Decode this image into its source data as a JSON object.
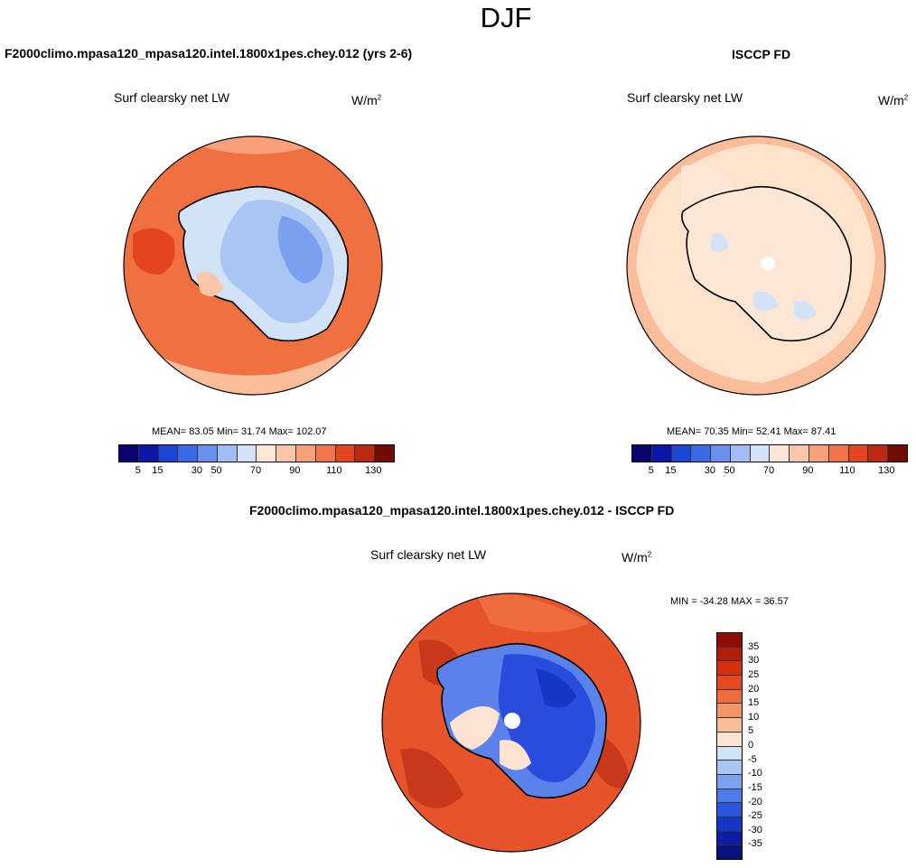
{
  "figure": {
    "season": "DJF",
    "colors": {
      "ocean_warm": "#f07040",
      "ocean_light": "#f9bd9a",
      "ocean_pale": "#fde2cc",
      "ice_light": "#d2e2f7",
      "ice_mid": "#a9c5f3",
      "ice_deep": "#7aa0ef",
      "diff_ocean": "#e8542a",
      "diff_dark": "#c8391b",
      "diff_land": "#2a4cdd",
      "diff_land_edge": "#5b82ea",
      "coast": "#000000"
    },
    "panels": [
      {
        "heading": "F2000climo.mpasa120_mpasa120.intel.1800x1pes.chey.012 (yrs 2-6)",
        "variable": "Surf clearsky net LW",
        "units_base": "W/m",
        "units_exp": "2",
        "stats": "MEAN=  83.05  Min=  31.74  Max= 102.07"
      },
      {
        "heading": "ISCCP FD",
        "variable": "Surf clearsky net LW",
        "units_base": "W/m",
        "units_exp": "2",
        "stats": "MEAN=  70.35  Min=  52.41  Max=  87.41"
      },
      {
        "heading": "F2000climo.mpasa120_mpasa120.intel.1800x1pes.chey.012 - ISCCP FD",
        "variable": "Surf clearsky net LW",
        "units_base": "W/m",
        "units_exp": "2",
        "stats": "MIN = -34.28 MAX =  36.57"
      }
    ],
    "abs_colorbar": {
      "colors": [
        "#08066e",
        "#0a17a8",
        "#1b46d6",
        "#3c6ae6",
        "#6a90ee",
        "#a1bdf5",
        "#d3e3f9",
        "#fde6d4",
        "#fbc5a8",
        "#f6a079",
        "#f17548",
        "#e3461f",
        "#bb2913",
        "#720a06"
      ],
      "ticks": [
        "5",
        "15",
        "30",
        "50",
        "70",
        "90",
        "110",
        "130"
      ]
    },
    "diff_colorbar": {
      "colors": [
        "#8e0d05",
        "#b31e0c",
        "#d3310e",
        "#e5491f",
        "#ef6c3e",
        "#f59469",
        "#f9bd9a",
        "#fde4d2",
        "#d2e2f7",
        "#a9c5f3",
        "#7aa2ef",
        "#4f7be8",
        "#2c55dc",
        "#1637c5",
        "#0d1ea6",
        "#07127a"
      ],
      "ticks": [
        "35",
        "30",
        "25",
        "20",
        "15",
        "10",
        "5",
        "0",
        "-5",
        "-10",
        "-15",
        "-20",
        "-25",
        "-30",
        "-35"
      ]
    }
  }
}
